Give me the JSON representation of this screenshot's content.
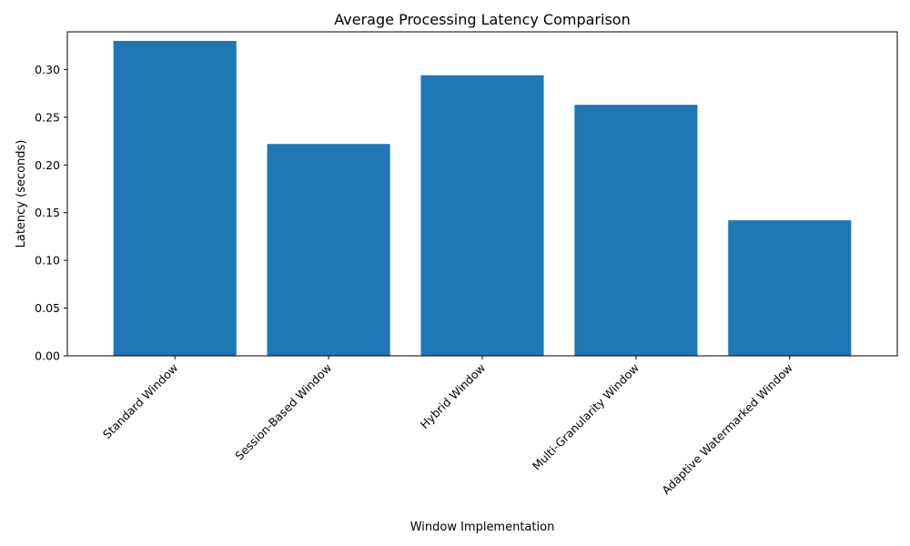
{
  "chart_data": {
    "type": "bar",
    "title": "Average Processing Latency Comparison",
    "xlabel": "Window Implementation",
    "ylabel": "Latency (seconds)",
    "categories": [
      "Standard Window",
      "Session-Based Window",
      "Hybrid Window",
      "Multi-Granularity Window",
      "Adaptive Watermarked Window"
    ],
    "values": [
      0.33,
      0.222,
      0.294,
      0.263,
      0.142
    ],
    "ylim": [
      0,
      0.3395
    ],
    "yticks": [
      0.0,
      0.05,
      0.1,
      0.15,
      0.2,
      0.25,
      0.3
    ],
    "ytick_labels": [
      "0.00",
      "0.05",
      "0.10",
      "0.15",
      "0.20",
      "0.25",
      "0.30"
    ],
    "bar_color": "#1f77b4",
    "grid": false,
    "legend": "none"
  }
}
